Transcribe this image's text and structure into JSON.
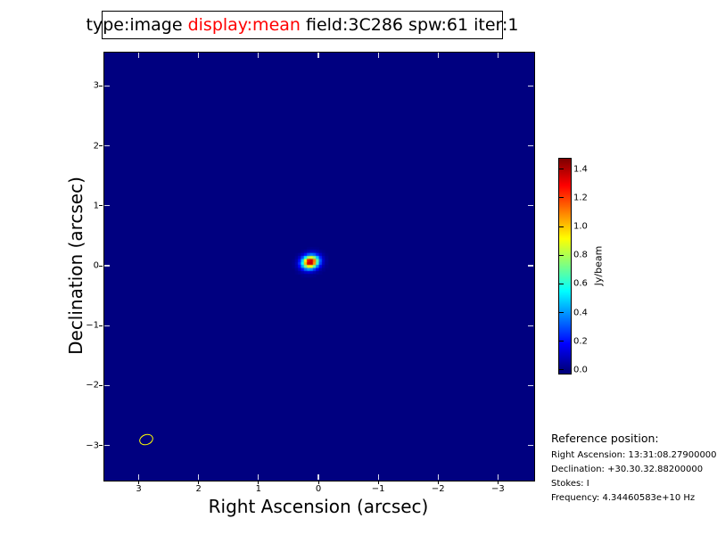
{
  "title": {
    "full_text": "type:image display:mean field:3C286 spw:61 iter:1",
    "segments": [
      {
        "text": "type:image ",
        "color": "#000000"
      },
      {
        "text": "display:mean",
        "color": "#ff0000"
      },
      {
        "text": " field:3C286 spw:61 iter:1",
        "color": "#000000"
      }
    ]
  },
  "chart_data": {
    "type": "heatmap",
    "title": "type:image display:mean field:3C286 spw:61 iter:1",
    "xlabel": "Right Ascension (arcsec)",
    "ylabel": "Declination (arcsec)",
    "x_range": [
      3.59,
      -3.59
    ],
    "y_range": [
      -3.57,
      3.57
    ],
    "x_ticks": [
      3,
      2,
      1,
      0,
      -1,
      -2,
      -3
    ],
    "y_ticks": [
      3,
      2,
      1,
      0,
      -1,
      -2,
      -3
    ],
    "x_tick_labels": [
      "3",
      "2",
      "1",
      "0",
      "−1",
      "−2",
      "−3"
    ],
    "y_tick_labels": [
      "3",
      "2",
      "1",
      "0",
      "−1",
      "−2",
      "−3"
    ],
    "grid": false,
    "colormap": "jet",
    "background_value": 0.0,
    "background_color": "#000080",
    "source": {
      "ra_arcsec": 0.15,
      "dec_arcsec": 0.07,
      "peak_jy_per_beam": 1.48,
      "sigma_ra_arcsec": 0.097,
      "sigma_dec_arcsec": 0.075,
      "position_angle_deg": -15
    },
    "beam_ellipse": {
      "ra_arcsec": 2.89,
      "dec_arcsec": -2.88,
      "major_arcsec": 0.24,
      "minor_arcsec": 0.18,
      "position_angle_deg": -20,
      "color": "#ffff00"
    },
    "colorbar": {
      "label": "Jy/beam",
      "tick_values": [
        0.0,
        0.2,
        0.4,
        0.6,
        0.8,
        1.0,
        1.2,
        1.4
      ],
      "tick_labels": [
        "0.0",
        "0.2",
        "0.4",
        "0.6",
        "0.8",
        "1.0",
        "1.2",
        "1.4"
      ],
      "bar_range": [
        -0.02,
        1.48
      ],
      "position": "right"
    }
  },
  "reference": {
    "heading": "Reference position:",
    "lines": [
      "Right Ascension: 13:31:08.27900000",
      "Declination: +30.30.32.88200000",
      "Stokes: I",
      "Frequency: 4.34460583e+10 Hz"
    ]
  },
  "colors": {
    "accent_red": "#ff0000",
    "plot_background": "#000080",
    "beam_outline": "#ffff00",
    "text": "#000000"
  }
}
